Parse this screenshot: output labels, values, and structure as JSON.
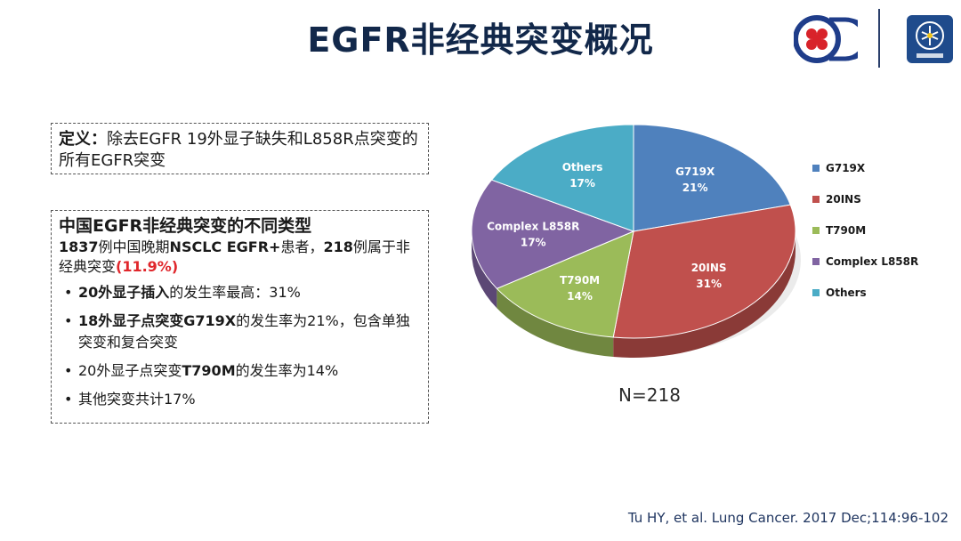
{
  "title": "EGFR非经典突变概况",
  "definition": {
    "label": "定义：",
    "text": "除去EGFR 19外显子缺失和L858R点突变的所有EGFR突变"
  },
  "types": {
    "title": "中国EGFR非经典突变的不同类型",
    "sub_part1": "1837",
    "sub_part2": "例中国晚期",
    "sub_part3": "NSCLC EGFR+",
    "sub_part4": "患者，",
    "sub_part5": "218",
    "sub_part6": "例属于非经典突变",
    "sub_part7": "(11.9%)",
    "bullets": [
      {
        "bold": "20外显子插入",
        "rest": "的发生率最高：31%"
      },
      {
        "bold": "18外显子点突变G719X",
        "rest": "的发生率为21%，包含单独突变和复合突变"
      },
      {
        "pre": "20外显子点突变",
        "bold": "T790M",
        "rest": "的发生率为14%"
      },
      {
        "rest": "其他突变共计17%"
      }
    ]
  },
  "chart_data": {
    "type": "pie",
    "slices": [
      {
        "label": "G719X",
        "value": 21,
        "display": "21%",
        "color": "#4f81bd"
      },
      {
        "label": "20INS",
        "value": 31,
        "display": "31%",
        "color": "#c0504d"
      },
      {
        "label": "T790M",
        "value": 14,
        "display": "14%",
        "color": "#9bbb59"
      },
      {
        "label": "Complex L858R",
        "value": 17,
        "display": "17%",
        "color": "#8064a2"
      },
      {
        "label": "Others",
        "value": 17,
        "display": "17%",
        "color": "#4bacc6"
      }
    ],
    "legend_position": "right",
    "note": "N=218"
  },
  "citation": "Tu HY, et al. Lung Cancer. 2017 Dec;114:96-102"
}
